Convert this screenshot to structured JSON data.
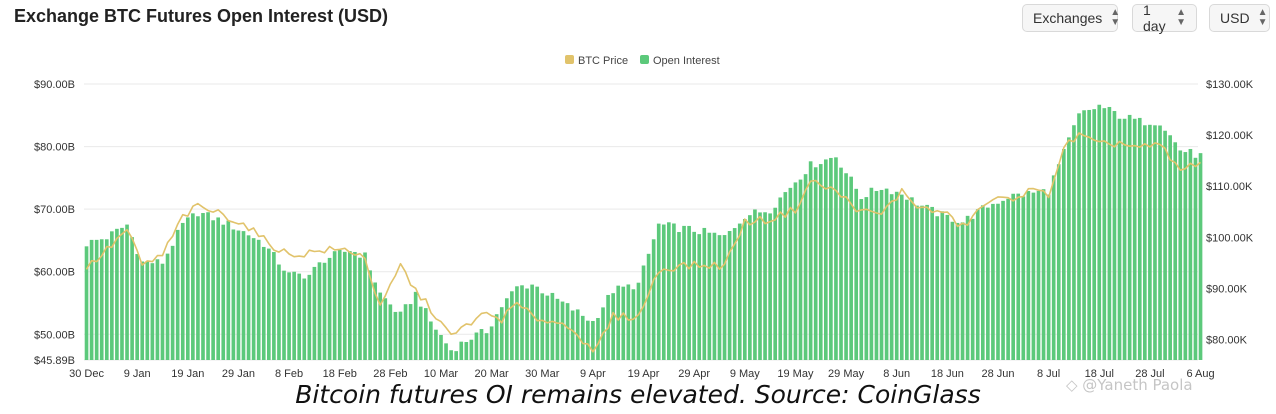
{
  "header": {
    "title": "Exchange BTC Futures Open Interest (USD)",
    "selectors": [
      {
        "label": "Exchanges"
      },
      {
        "label": "1 day"
      },
      {
        "label": "USD"
      }
    ]
  },
  "caption": "Bitcoin futures OI remains elevated. Source: CoinGlass",
  "watermark": "◇ @Yaneth Paola",
  "colors": {
    "open_interest": "#5cc97b",
    "btc_price": "#e1c36b",
    "grid": "#e9e9e9"
  },
  "chart_data": {
    "type": "bar",
    "legend": [
      "BTC Price",
      "Open Interest"
    ],
    "legend_position": "top-center",
    "grid": true,
    "x_tick_labels": [
      "30 Dec",
      "9 Jan",
      "19 Jan",
      "29 Jan",
      "8 Feb",
      "18 Feb",
      "28 Feb",
      "10 Mar",
      "20 Mar",
      "30 Mar",
      "9 Apr",
      "19 Apr",
      "29 Apr",
      "9 May",
      "19 May",
      "29 May",
      "8 Jun",
      "18 Jun",
      "28 Jun",
      "8 Jul",
      "18 Jul",
      "28 Jul",
      "6 Aug"
    ],
    "y_left_ticks": [
      "$45.89B",
      "$50.00B",
      "$60.00B",
      "$70.00B",
      "$80.00B",
      "$90.00B"
    ],
    "y_right_ticks": [
      "$80.00K",
      "$90.00K",
      "$100.00K",
      "$110.00K",
      "$120.00K",
      "$130.00K"
    ],
    "ylim_left": [
      45.89,
      90
    ],
    "ylim_right": [
      76,
      130
    ],
    "start_date": "2024-12-30",
    "end_date": "2025-08-07",
    "series": [
      {
        "name": "Open Interest",
        "axis": "left",
        "unit": "USD billions",
        "anchors": [
          {
            "date": "2024-12-30",
            "value": 64.5
          },
          {
            "date": "2025-01-03",
            "value": 65.5
          },
          {
            "date": "2025-01-07",
            "value": 67.5
          },
          {
            "date": "2025-01-10",
            "value": 61.5
          },
          {
            "date": "2025-01-14",
            "value": 61.5
          },
          {
            "date": "2025-01-18",
            "value": 67.5
          },
          {
            "date": "2025-01-21",
            "value": 69.5
          },
          {
            "date": "2025-01-26",
            "value": 68.0
          },
          {
            "date": "2025-01-31",
            "value": 66.0
          },
          {
            "date": "2025-02-03",
            "value": 64.5
          },
          {
            "date": "2025-02-08",
            "value": 59.5
          },
          {
            "date": "2025-02-12",
            "value": 59.5
          },
          {
            "date": "2025-02-15",
            "value": 62.0
          },
          {
            "date": "2025-02-20",
            "value": 63.5
          },
          {
            "date": "2025-02-23",
            "value": 62.5
          },
          {
            "date": "2025-02-26",
            "value": 56.5
          },
          {
            "date": "2025-03-02",
            "value": 53.0
          },
          {
            "date": "2025-03-05",
            "value": 56.5
          },
          {
            "date": "2025-03-08",
            "value": 52.0
          },
          {
            "date": "2025-03-12",
            "value": 47.5
          },
          {
            "date": "2025-03-16",
            "value": 49.5
          },
          {
            "date": "2025-03-19",
            "value": 50.5
          },
          {
            "date": "2025-03-22",
            "value": 54.5
          },
          {
            "date": "2025-03-25",
            "value": 57.5
          },
          {
            "date": "2025-03-28",
            "value": 58.0
          },
          {
            "date": "2025-04-01",
            "value": 56.0
          },
          {
            "date": "2025-04-05",
            "value": 54.0
          },
          {
            "date": "2025-04-09",
            "value": 52.0
          },
          {
            "date": "2025-04-13",
            "value": 57.0
          },
          {
            "date": "2025-04-18",
            "value": 58.0
          },
          {
            "date": "2025-04-22",
            "value": 67.5
          },
          {
            "date": "2025-04-26",
            "value": 67.0
          },
          {
            "date": "2025-04-30",
            "value": 66.5
          },
          {
            "date": "2025-05-05",
            "value": 65.5
          },
          {
            "date": "2025-05-09",
            "value": 69.0
          },
          {
            "date": "2025-05-14",
            "value": 70.0
          },
          {
            "date": "2025-05-19",
            "value": 74.5
          },
          {
            "date": "2025-05-22",
            "value": 77.0
          },
          {
            "date": "2025-05-27",
            "value": 78.5
          },
          {
            "date": "2025-06-01",
            "value": 72.0
          },
          {
            "date": "2025-06-05",
            "value": 73.5
          },
          {
            "date": "2025-06-09",
            "value": 72.5
          },
          {
            "date": "2025-06-13",
            "value": 70.5
          },
          {
            "date": "2025-06-17",
            "value": 69.0
          },
          {
            "date": "2025-06-21",
            "value": 68.0
          },
          {
            "date": "2025-06-26",
            "value": 70.5
          },
          {
            "date": "2025-06-30",
            "value": 72.0
          },
          {
            "date": "2025-07-04",
            "value": 72.5
          },
          {
            "date": "2025-07-08",
            "value": 73.0
          },
          {
            "date": "2025-07-11",
            "value": 79.0
          },
          {
            "date": "2025-07-14",
            "value": 85.0
          },
          {
            "date": "2025-07-18",
            "value": 86.5
          },
          {
            "date": "2025-07-22",
            "value": 85.0
          },
          {
            "date": "2025-07-26",
            "value": 84.0
          },
          {
            "date": "2025-07-30",
            "value": 84.0
          },
          {
            "date": "2025-08-03",
            "value": 79.5
          },
          {
            "date": "2025-08-07",
            "value": 78.5
          }
        ]
      },
      {
        "name": "BTC Price",
        "axis": "right",
        "unit": "USD thousands",
        "anchors": [
          {
            "date": "2024-12-30",
            "value": 94.0
          },
          {
            "date": "2025-01-03",
            "value": 97.5
          },
          {
            "date": "2025-01-07",
            "value": 101.5
          },
          {
            "date": "2025-01-10",
            "value": 94.5
          },
          {
            "date": "2025-01-14",
            "value": 96.5
          },
          {
            "date": "2025-01-18",
            "value": 104.0
          },
          {
            "date": "2025-01-21",
            "value": 106.0
          },
          {
            "date": "2025-01-26",
            "value": 104.5
          },
          {
            "date": "2025-01-31",
            "value": 102.0
          },
          {
            "date": "2025-02-03",
            "value": 99.5
          },
          {
            "date": "2025-02-08",
            "value": 96.5
          },
          {
            "date": "2025-02-12",
            "value": 97.0
          },
          {
            "date": "2025-02-15",
            "value": 97.5
          },
          {
            "date": "2025-02-20",
            "value": 97.5
          },
          {
            "date": "2025-02-23",
            "value": 96.0
          },
          {
            "date": "2025-02-26",
            "value": 86.0
          },
          {
            "date": "2025-03-02",
            "value": 94.5
          },
          {
            "date": "2025-03-05",
            "value": 89.5
          },
          {
            "date": "2025-03-08",
            "value": 86.0
          },
          {
            "date": "2025-03-12",
            "value": 80.5
          },
          {
            "date": "2025-03-16",
            "value": 83.5
          },
          {
            "date": "2025-03-19",
            "value": 85.0
          },
          {
            "date": "2025-03-22",
            "value": 84.0
          },
          {
            "date": "2025-03-25",
            "value": 87.0
          },
          {
            "date": "2025-03-28",
            "value": 84.5
          },
          {
            "date": "2025-04-01",
            "value": 83.5
          },
          {
            "date": "2025-04-05",
            "value": 82.5
          },
          {
            "date": "2025-04-09",
            "value": 77.0
          },
          {
            "date": "2025-04-13",
            "value": 84.5
          },
          {
            "date": "2025-04-18",
            "value": 84.5
          },
          {
            "date": "2025-04-22",
            "value": 93.5
          },
          {
            "date": "2025-04-26",
            "value": 94.5
          },
          {
            "date": "2025-04-30",
            "value": 94.5
          },
          {
            "date": "2025-05-05",
            "value": 94.5
          },
          {
            "date": "2025-05-09",
            "value": 103.0
          },
          {
            "date": "2025-05-14",
            "value": 103.5
          },
          {
            "date": "2025-05-19",
            "value": 105.5
          },
          {
            "date": "2025-05-22",
            "value": 111.0
          },
          {
            "date": "2025-05-27",
            "value": 109.0
          },
          {
            "date": "2025-06-01",
            "value": 105.0
          },
          {
            "date": "2025-06-05",
            "value": 104.5
          },
          {
            "date": "2025-06-09",
            "value": 109.0
          },
          {
            "date": "2025-06-13",
            "value": 105.5
          },
          {
            "date": "2025-06-17",
            "value": 105.0
          },
          {
            "date": "2025-06-21",
            "value": 102.0
          },
          {
            "date": "2025-06-26",
            "value": 107.0
          },
          {
            "date": "2025-06-30",
            "value": 107.5
          },
          {
            "date": "2025-07-04",
            "value": 109.0
          },
          {
            "date": "2025-07-08",
            "value": 108.5
          },
          {
            "date": "2025-07-11",
            "value": 117.5
          },
          {
            "date": "2025-07-14",
            "value": 120.0
          },
          {
            "date": "2025-07-18",
            "value": 118.0
          },
          {
            "date": "2025-07-22",
            "value": 118.5
          },
          {
            "date": "2025-07-26",
            "value": 117.5
          },
          {
            "date": "2025-07-30",
            "value": 118.0
          },
          {
            "date": "2025-08-03",
            "value": 113.0
          },
          {
            "date": "2025-08-07",
            "value": 115.0
          }
        ]
      }
    ]
  }
}
